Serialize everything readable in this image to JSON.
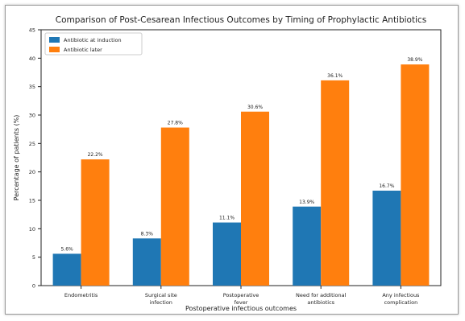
{
  "chart_data": {
    "type": "bar",
    "title": "Comparison of Post-Cesarean Infectious Outcomes by Timing of Prophylactic Antibiotics",
    "xlabel": "Postoperative infectious outcomes",
    "ylabel": "Percentage of patients (%)",
    "ylim": [
      0,
      45
    ],
    "yticks": [
      0,
      5,
      10,
      15,
      20,
      25,
      30,
      35,
      40,
      45
    ],
    "grid": false,
    "legend_position": "top-left",
    "categories": [
      [
        "Endometritis"
      ],
      [
        "Surgical site",
        "infection"
      ],
      [
        "Postoperative",
        "fever"
      ],
      [
        "Need for additional",
        "antibiotics"
      ],
      [
        "Any infectious",
        "complication"
      ]
    ],
    "series": [
      {
        "name": "Antibiotic at induction",
        "color": "#1f77b4",
        "values": [
          5.6,
          8.3,
          11.1,
          13.9,
          16.7
        ],
        "labels": [
          "5.6%",
          "8.3%",
          "11.1%",
          "13.9%",
          "16.7%"
        ]
      },
      {
        "name": "Antibiotic later",
        "color": "#ff7f0e",
        "values": [
          22.2,
          27.8,
          30.6,
          36.1,
          38.9
        ],
        "labels": [
          "22.2%",
          "27.8%",
          "30.6%",
          "36.1%",
          "38.9%"
        ]
      }
    ]
  }
}
